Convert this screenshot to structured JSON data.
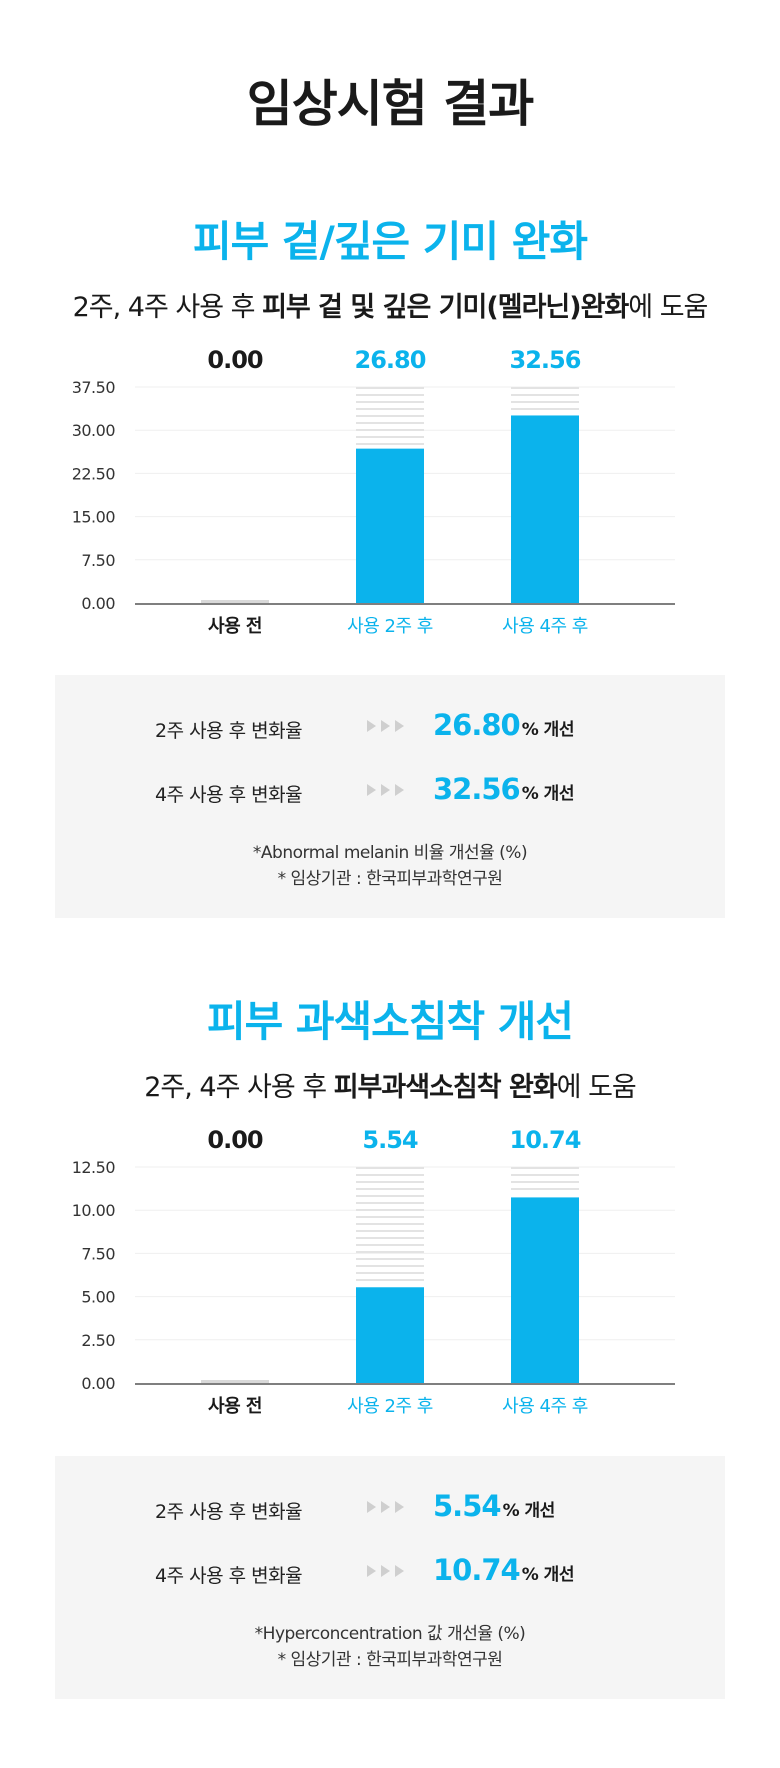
{
  "page_title": "임상시험 결과",
  "sections": [
    {
      "title": "피부 겉/깊은 기미 완화",
      "subtitle_pre": "2주, 4주 사용 후 ",
      "subtitle_bold": "피부 겉 및 깊은 기미(멜라닌)완화",
      "subtitle_post": "에 도움",
      "stats": [
        {
          "label": "2주 사용 후 변화율",
          "value": "26.80",
          "suffix": "% 개선"
        },
        {
          "label": "4주 사용 후 변화율",
          "value": "32.56",
          "suffix": "% 개선"
        }
      ],
      "note1": "*Abnormal melanin 비율 개선율 (%)",
      "note2": "* 임상기관 : 한국피부과학연구원"
    },
    {
      "title": "피부 과색소침착 개선",
      "subtitle_pre": "2주, 4주 사용 후 ",
      "subtitle_bold": "피부과색소침착 완화",
      "subtitle_post": "에 도움",
      "stats": [
        {
          "label": "2주 사용 후 변화율",
          "value": "5.54",
          "suffix": "% 개선"
        },
        {
          "label": "4주 사용 후 변화율",
          "value": "10.74",
          "suffix": "% 개선"
        }
      ],
      "note1": "*Hyperconcentration 값 개선율 (%)",
      "note2": "* 임상기관 : 한국피부과학연구원"
    }
  ],
  "chart_data": [
    {
      "type": "bar",
      "categories": [
        "사용 전",
        "사용 2주 후",
        "사용 4주 후"
      ],
      "values": [
        0.0,
        26.8,
        32.56
      ],
      "value_labels": [
        "0.00",
        "26.80",
        "32.56"
      ],
      "yticks": [
        "0.00",
        "7.50",
        "15.00",
        "22.50",
        "30.00",
        "37.50"
      ],
      "ylim": [
        0,
        37.5
      ],
      "grid": true,
      "colors": {
        "accent": "#0bb3ec",
        "baseline_bar": "#d9d9d9",
        "stripe": "#e3e3e3",
        "text": "#1a1a1a"
      }
    },
    {
      "type": "bar",
      "categories": [
        "사용 전",
        "사용 2주 후",
        "사용 4주 후"
      ],
      "values": [
        0.0,
        5.54,
        10.74
      ],
      "value_labels": [
        "0.00",
        "5.54",
        "10.74"
      ],
      "yticks": [
        "0.00",
        "2.50",
        "5.00",
        "7.50",
        "10.00",
        "12.50"
      ],
      "ylim": [
        0,
        12.5
      ],
      "grid": true,
      "colors": {
        "accent": "#0bb3ec",
        "baseline_bar": "#d9d9d9",
        "stripe": "#e3e3e3",
        "text": "#1a1a1a"
      }
    }
  ]
}
